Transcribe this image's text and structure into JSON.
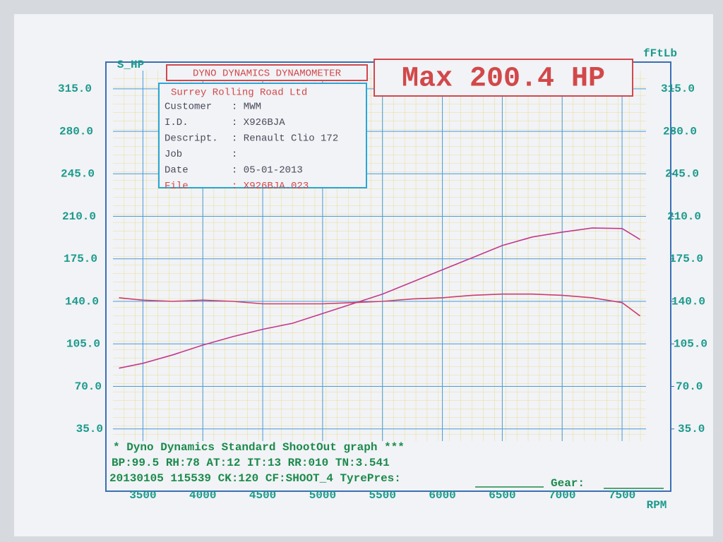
{
  "chart_data": {
    "type": "line",
    "header": "DYNO DYNAMICS DYNAMOMETER",
    "max_label": "Max 200.4 HP",
    "info": {
      "company": "Surrey Rolling Road Ltd",
      "rows": [
        {
          "key": "Customer",
          "value": ": MWM"
        },
        {
          "key": "I.D.",
          "value": ": X926BJA"
        },
        {
          "key": "Descript.",
          "value": ": Renault Clio 172"
        },
        {
          "key": "Job",
          "value": ":"
        },
        {
          "key": "Date",
          "value": ": 05-01-2013"
        },
        {
          "key": "File",
          "value": ": X926BJA.023"
        }
      ]
    },
    "footer": [
      "* Dyno Dynamics Standard ShootOut graph ***",
      "BP:99.5  RH:78 AT:12 IT:13  RR:010 TN:3.541",
      "20130105 115539 CK:120 CF:SHOOT_4  TyrePres:",
      "Gear:"
    ],
    "y_label": "S_HP",
    "y2_label": "fFtLb",
    "x_label": "RPM",
    "x": [
      3300,
      3500,
      3750,
      4000,
      4250,
      4500,
      4750,
      5000,
      5250,
      5500,
      5750,
      6000,
      6250,
      6500,
      6750,
      7000,
      7250,
      7500,
      7650
    ],
    "series": [
      {
        "name": "Power",
        "color": "#c2388f",
        "values": [
          85,
          89,
          96,
          104,
          111,
          117,
          122,
          130,
          138,
          146,
          156,
          166,
          176,
          186,
          193,
          197,
          200.4,
          200,
          191
        ]
      },
      {
        "name": "Torque",
        "color": "#cc3d6b",
        "axis": "y2",
        "values": [
          143,
          141,
          140,
          141,
          140,
          138,
          138,
          138,
          139,
          140,
          142,
          143,
          145,
          146,
          146,
          145,
          143,
          139,
          128
        ]
      }
    ],
    "xlim": [
      3250,
      7700
    ],
    "xticks": [
      3500,
      4000,
      4500,
      5000,
      5500,
      6000,
      6500,
      7000,
      7500
    ],
    "ylim": [
      25,
      330
    ],
    "yticks": [
      {
        "value": 35,
        "label": "35.0"
      },
      {
        "value": 70,
        "label": "70.0"
      },
      {
        "value": 105,
        "label": "105.0"
      },
      {
        "value": 140,
        "label": "140.0"
      },
      {
        "value": 175,
        "label": "175.0"
      },
      {
        "value": 210,
        "label": "210.0"
      },
      {
        "value": 245,
        "label": "245.0"
      },
      {
        "value": 280,
        "label": "280.0"
      },
      {
        "value": 315,
        "label": "315.0"
      }
    ],
    "y2lim": [
      25,
      330
    ],
    "y2ticks": [
      {
        "value": 35,
        "label": "35.0"
      },
      {
        "value": 70,
        "label": "70.0"
      },
      {
        "value": 105,
        "label": "105.0"
      },
      {
        "value": 140,
        "label": "140.0"
      },
      {
        "value": 175,
        "label": "175.0"
      },
      {
        "value": 210,
        "label": "210.0"
      },
      {
        "value": 245,
        "label": "245.0"
      },
      {
        "value": 280,
        "label": "280.0"
      },
      {
        "value": 315,
        "label": "315.0"
      }
    ],
    "grid": true
  }
}
